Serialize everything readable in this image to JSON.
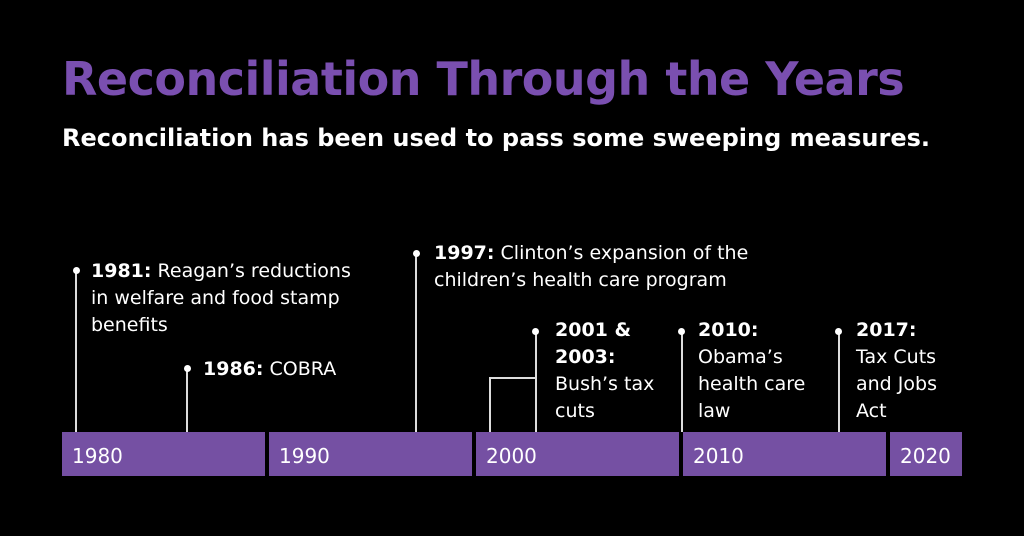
{
  "title": "Reconciliation Through the Years",
  "subtitle": "Reconciliation has been used to pass some sweeping measures.",
  "decades": [
    "1980",
    "1990",
    "2000",
    "2010",
    "2020"
  ],
  "events": [
    {
      "year": "1981:",
      "text": "Reagan’s reductions in welfare and food stamp benefits"
    },
    {
      "year": "1986:",
      "text": "COBRA"
    },
    {
      "year": "1997:",
      "text": "Clinton’s expansion of the children’s health care program"
    },
    {
      "year": "2001 & 2003:",
      "text": "Bush’s tax cuts"
    },
    {
      "year": "2010:",
      "text": "Obama’s health care law"
    },
    {
      "year": "2017:",
      "text": "Tax Cuts and Jobs Act"
    }
  ],
  "colors": {
    "accent": "#7a4fb0",
    "bar": "#7550a3"
  }
}
